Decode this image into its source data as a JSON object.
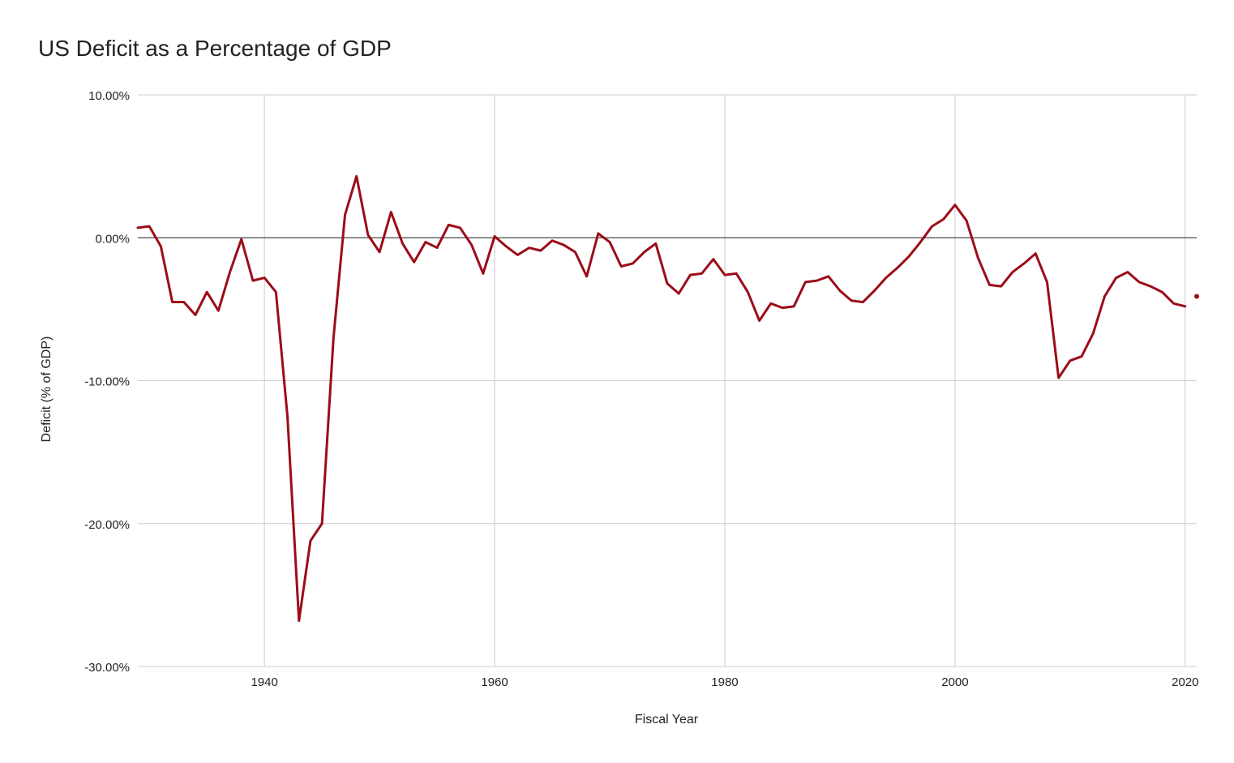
{
  "chart_data": {
    "type": "line",
    "title": "US Deficit as a Percentage of GDP",
    "xlabel": "Fiscal Year",
    "ylabel": "Deficit (% of GDP)",
    "xlim": [
      1929,
      2021
    ],
    "ylim": [
      -30,
      10
    ],
    "x_ticks": [
      1940,
      1960,
      1980,
      2000,
      2020
    ],
    "x_tick_labels": [
      "1940",
      "1960",
      "1980",
      "2000",
      "2020"
    ],
    "y_ticks": [
      10,
      0,
      -10,
      -20,
      -30
    ],
    "y_tick_labels": [
      "10.00%",
      "0.00%",
      "-10.00%",
      "-20.00%",
      "-30.00%"
    ],
    "grid": true,
    "zero_line": true,
    "legend": "none",
    "series_color": "#9b0d18",
    "series": [
      {
        "x": [
          1929,
          1930,
          1931,
          1932,
          1933,
          1934,
          1935,
          1936,
          1937,
          1938,
          1939,
          1940,
          1941,
          1942,
          1943,
          1944,
          1945,
          1946,
          1947,
          1948,
          1949,
          1950,
          1951,
          1952,
          1953,
          1954,
          1955,
          1956,
          1957,
          1958,
          1959,
          1960,
          1961,
          1962,
          1963,
          1964,
          1965,
          1966,
          1967,
          1968,
          1969,
          1970,
          1971,
          1972,
          1973,
          1974,
          1975,
          1976,
          1977,
          1978,
          1979,
          1980,
          1981,
          1982,
          1983,
          1984,
          1985,
          1986,
          1987,
          1988,
          1989,
          1990,
          1991,
          1992,
          1993,
          1994,
          1995,
          1996,
          1997,
          1998,
          1999,
          2000,
          2001,
          2002,
          2003,
          2004,
          2005,
          2006,
          2007,
          2008,
          2009,
          2010,
          2011,
          2012,
          2013,
          2014,
          2015,
          2016,
          2017,
          2018,
          2019,
          2020
        ],
        "values": [
          0.7,
          0.8,
          -0.6,
          -4.5,
          -4.5,
          -5.4,
          -3.8,
          -5.1,
          -2.4,
          -0.1,
          -3.0,
          -2.8,
          -3.8,
          -12.5,
          -26.8,
          -21.2,
          -20.0,
          -7.0,
          1.6,
          4.3,
          0.2,
          -1.0,
          1.8,
          -0.4,
          -1.7,
          -0.3,
          -0.7,
          0.9,
          0.7,
          -0.5,
          -2.5,
          0.1,
          -0.6,
          -1.2,
          -0.7,
          -0.9,
          -0.2,
          -0.5,
          -1.0,
          -2.7,
          0.3,
          -0.3,
          -2.0,
          -1.8,
          -1.0,
          -0.4,
          -3.2,
          -3.9,
          -2.6,
          -2.5,
          -1.5,
          -2.6,
          -2.5,
          -3.8,
          -5.8,
          -4.6,
          -4.9,
          -4.8,
          -3.1,
          -3.0,
          -2.7,
          -3.7,
          -4.4,
          -4.5,
          -3.7,
          -2.8,
          -2.1,
          -1.3,
          -0.3,
          0.8,
          1.3,
          2.3,
          1.2,
          -1.4,
          -3.3,
          -3.4,
          -2.4,
          -1.8,
          -1.1,
          -3.1,
          -9.8,
          -8.6,
          -8.3,
          -6.7,
          -4.1,
          -2.8,
          -2.4,
          -3.1,
          -3.4,
          -3.8,
          -4.6,
          -4.8
        ]
      },
      {
        "x": [
          2021
        ],
        "values": [
          -4.1
        ]
      }
    ]
  }
}
